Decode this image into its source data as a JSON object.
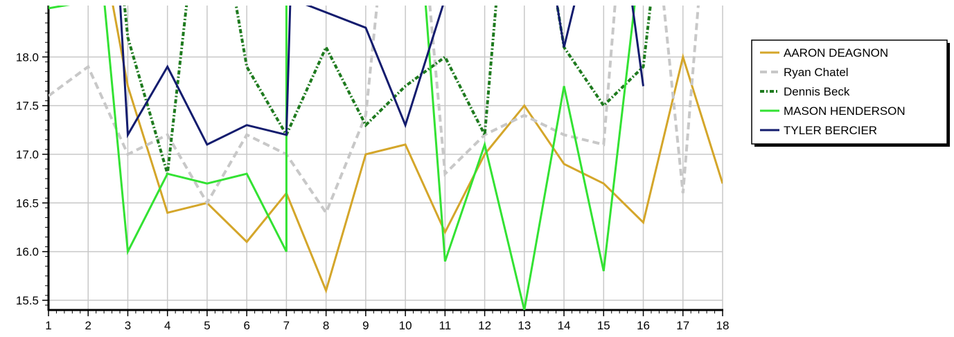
{
  "chart_data": {
    "type": "line",
    "title": "",
    "xlabel": "",
    "ylabel": "",
    "x": [
      1,
      2,
      3,
      4,
      5,
      6,
      7,
      8,
      9,
      10,
      11,
      12,
      13,
      14,
      15,
      16,
      17,
      18
    ],
    "xlim": [
      1,
      18
    ],
    "ylim": [
      15.4,
      18.5
    ],
    "yticks": [
      "15.5",
      "16.0",
      "16.5",
      "17.0",
      "17.5",
      "18.0"
    ],
    "xticks": [
      "1",
      "2",
      "3",
      "4",
      "5",
      "6",
      "7",
      "8",
      "9",
      "10",
      "11",
      "12",
      "13",
      "14",
      "15",
      "16",
      "17",
      "18"
    ],
    "grid": true,
    "legend_position": "right",
    "series": [
      {
        "name": "AARON DEAGNON",
        "color": "#d4a62a",
        "dash": "solid",
        "points": [
          [
            2.5,
            18.8
          ],
          [
            3,
            17.7
          ],
          [
            4,
            16.4
          ],
          [
            5,
            16.5
          ],
          [
            6,
            16.1
          ],
          [
            7,
            16.6
          ],
          [
            8,
            15.6
          ],
          [
            9,
            17.0
          ],
          [
            10,
            17.1
          ],
          [
            11,
            16.2
          ],
          [
            12,
            17.0
          ],
          [
            13,
            17.5
          ],
          [
            14,
            16.9
          ],
          [
            15,
            16.7
          ],
          [
            16,
            16.3
          ],
          [
            17,
            18.0
          ],
          [
            18,
            16.7
          ]
        ]
      },
      {
        "name": "Ryan Chatel",
        "color": "#c8c8c8",
        "dash": "dash",
        "points": [
          [
            1,
            17.6
          ],
          [
            2,
            17.9
          ],
          [
            3,
            17.0
          ],
          [
            4,
            17.2
          ],
          [
            5,
            16.5
          ],
          [
            6,
            17.2
          ],
          [
            7,
            17.0
          ],
          [
            8,
            16.4
          ],
          [
            9,
            17.4
          ],
          [
            9.3,
            18.6
          ],
          [
            10.6,
            18.6
          ],
          [
            11,
            16.8
          ],
          [
            12,
            17.2
          ],
          [
            13,
            17.4
          ],
          [
            14,
            17.2
          ],
          [
            15,
            17.1
          ],
          [
            15.3,
            18.6
          ],
          [
            16.5,
            18.6
          ],
          [
            17,
            16.6
          ],
          [
            17.4,
            18.6
          ]
        ]
      },
      {
        "name": "Dennis Beck",
        "color": "#1e7a1e",
        "dash": "dashdot",
        "points": [
          [
            2.9,
            18.6
          ],
          [
            3,
            18.2
          ],
          [
            4,
            16.8
          ],
          [
            4.5,
            18.6
          ],
          [
            5.7,
            18.6
          ],
          [
            6,
            17.9
          ],
          [
            7,
            17.2
          ],
          [
            8,
            18.1
          ],
          [
            9,
            17.3
          ],
          [
            10,
            17.7
          ],
          [
            11,
            18.0
          ],
          [
            12,
            17.2
          ],
          [
            12.3,
            18.6
          ],
          [
            13.8,
            18.6
          ],
          [
            14,
            18.1
          ],
          [
            15,
            17.5
          ],
          [
            16,
            17.9
          ],
          [
            16.2,
            18.6
          ]
        ]
      },
      {
        "name": "MASON HENDERSON",
        "color": "#33e233",
        "dash": "solid",
        "points": [
          [
            1,
            18.6
          ],
          [
            1,
            18.5
          ],
          [
            2.4,
            18.6
          ],
          [
            3,
            16.0
          ],
          [
            4,
            16.8
          ],
          [
            5,
            16.7
          ],
          [
            6,
            16.8
          ],
          [
            7,
            16.0
          ],
          [
            7,
            18.6
          ],
          [
            10.5,
            18.6
          ],
          [
            11,
            15.9
          ],
          [
            12,
            17.1
          ],
          [
            13,
            15.4
          ],
          [
            14,
            17.7
          ],
          [
            15,
            15.8
          ],
          [
            15.8,
            18.6
          ]
        ]
      },
      {
        "name": "TYLER BERCIER",
        "color": "#131c6e",
        "dash": "solid",
        "points": [
          [
            2.8,
            18.6
          ],
          [
            3,
            17.2
          ],
          [
            4,
            17.9
          ],
          [
            5,
            17.1
          ],
          [
            6,
            17.3
          ],
          [
            7,
            17.2
          ],
          [
            7.1,
            18.6
          ],
          [
            9,
            18.3
          ],
          [
            10,
            17.3
          ],
          [
            11,
            18.6
          ],
          [
            13.8,
            18.6
          ],
          [
            14,
            18.1
          ],
          [
            14.3,
            18.6
          ],
          [
            15.7,
            18.6
          ],
          [
            16,
            17.7
          ]
        ]
      }
    ]
  }
}
